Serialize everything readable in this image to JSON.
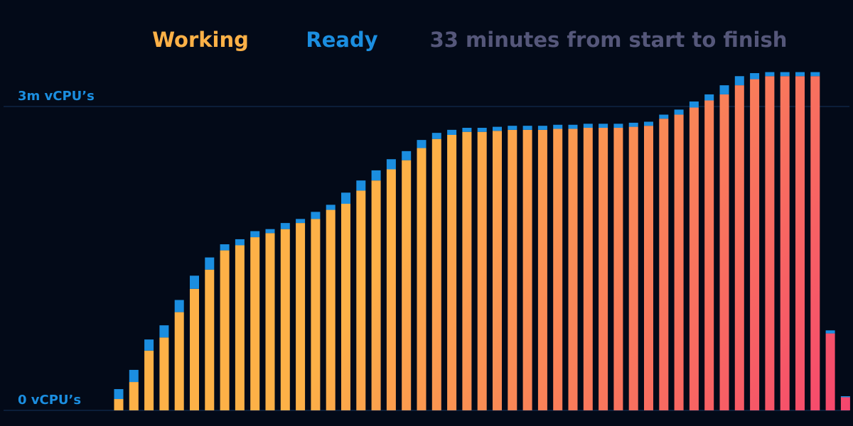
{
  "chart_data": {
    "type": "stacked_bar",
    "annotation": "33 minutes from start to finish",
    "categories": [
      null,
      null,
      null,
      null,
      null,
      null,
      null,
      null,
      null,
      null,
      null,
      null,
      null,
      null,
      null,
      null,
      null,
      null,
      null,
      null,
      null,
      null,
      null,
      null,
      null,
      null,
      null,
      null,
      null,
      null,
      null,
      null,
      null,
      null,
      null,
      null,
      null,
      null,
      null,
      null,
      null,
      null,
      null,
      null,
      null,
      null,
      null,
      null,
      null
    ],
    "series": [
      {
        "name": "Working",
        "color": "#fdb147",
        "values": [
          112000,
          280000,
          590000,
          720000,
          970000,
          1200000,
          1390000,
          1580000,
          1630000,
          1710000,
          1750000,
          1790000,
          1850000,
          1890000,
          1980000,
          2040000,
          2170000,
          2270000,
          2380000,
          2470000,
          2590000,
          2680000,
          2720000,
          2750000,
          2750000,
          2760000,
          2770000,
          2770000,
          2770000,
          2780000,
          2780000,
          2790000,
          2790000,
          2790000,
          2800000,
          2810000,
          2880000,
          2920000,
          2990000,
          3060000,
          3120000,
          3210000,
          3270000,
          3300000,
          3300000,
          3300000,
          3300000,
          760000,
          130000
        ]
      },
      {
        "name": "Ready",
        "color": "#1b8ee0",
        "values": [
          98000,
          120000,
          110000,
          120000,
          120000,
          130000,
          120000,
          60000,
          60000,
          60000,
          40000,
          60000,
          40000,
          70000,
          50000,
          110000,
          100000,
          100000,
          100000,
          90000,
          80000,
          60000,
          50000,
          40000,
          40000,
          40000,
          40000,
          40000,
          40000,
          40000,
          40000,
          40000,
          40000,
          40000,
          40000,
          40000,
          40000,
          50000,
          60000,
          60000,
          90000,
          90000,
          60000,
          40000,
          40000,
          40000,
          40000,
          30000,
          10000
        ]
      }
    ],
    "ylim": [
      0,
      3400000
    ],
    "yticks": [
      {
        "value": 0,
        "label": "0 vCPU’s"
      },
      {
        "value": 3000000,
        "label": "3m vCPU’s"
      }
    ],
    "grid": true
  }
}
